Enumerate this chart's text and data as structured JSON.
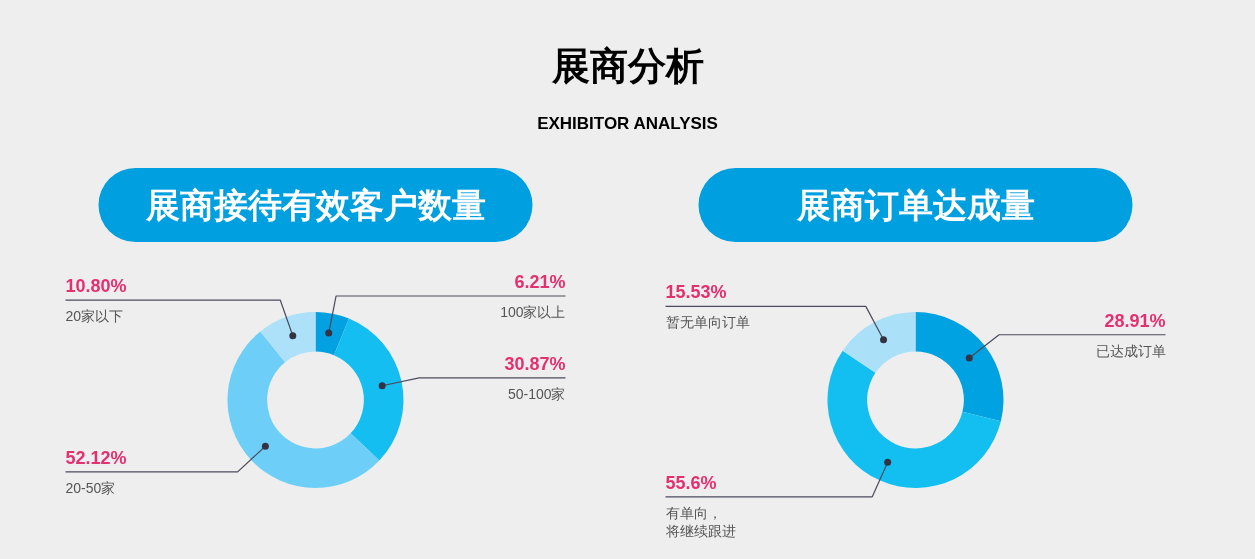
{
  "chart_data": [
    {
      "type": "other",
      "title": "展商分析",
      "subtitle": "EXHIBITOR ANALYSIS"
    },
    {
      "type": "donut",
      "title": "展商接待有效客户数量",
      "categories": [
        "100家以上",
        "50-100家",
        "20-50家",
        "20家以下"
      ],
      "values": [
        6.21,
        30.87,
        52.12,
        10.8
      ],
      "colors": [
        "#03a0e2",
        "#14bef1",
        "#6dcff7",
        "#ade1f9"
      ],
      "value_labels": [
        "6.21%",
        "30.87%",
        "52.12%",
        "10.80%"
      ]
    },
    {
      "type": "donut",
      "title": "展商订单达成量",
      "categories": [
        "已达成订单",
        "有单向，将继续跟进",
        "暂无单向订单"
      ],
      "values": [
        28.91,
        55.6,
        15.53
      ],
      "colors": [
        "#00a2e2",
        "#13bff1",
        "#aae0f8"
      ],
      "value_labels": [
        "28.91%",
        "55.6%",
        "15.53%"
      ]
    }
  ]
}
